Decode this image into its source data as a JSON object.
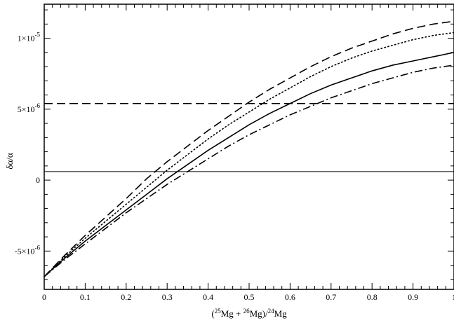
{
  "chart_data": {
    "type": "line",
    "title": "",
    "xlabel": {
      "open": "(",
      "iso25": "25",
      "mg1": "Mg + ",
      "iso26": "26",
      "mg2": "Mg)/",
      "iso24": "24",
      "mg3": "Mg"
    },
    "ylabel": "δα/α",
    "xlim": [
      0,
      1
    ],
    "ylim": [
      -7.7e-06,
      1.24e-05
    ],
    "grid": false,
    "x_ticks": [
      {
        "value": 0,
        "label": "0"
      },
      {
        "value": 0.1,
        "label": "0.1"
      },
      {
        "value": 0.2,
        "label": "0.2"
      },
      {
        "value": 0.3,
        "label": "0.3"
      },
      {
        "value": 0.4,
        "label": "0.4"
      },
      {
        "value": 0.5,
        "label": "0.5"
      },
      {
        "value": 0.6,
        "label": "0.6"
      },
      {
        "value": 0.7,
        "label": "0.7"
      },
      {
        "value": 0.8,
        "label": "0.8"
      },
      {
        "value": 0.9,
        "label": "0.9"
      },
      {
        "value": 1,
        "label": "1"
      }
    ],
    "y_ticks": [
      {
        "value": -5e-06,
        "mantissa": "-5×10",
        "exponent": "-6"
      },
      {
        "value": 0,
        "mantissa": "0",
        "exponent": ""
      },
      {
        "value": 5e-06,
        "mantissa": "5×10",
        "exponent": "-6"
      },
      {
        "value": 1e-05,
        "mantissa": "1×10",
        "exponent": "-5"
      }
    ],
    "reference_lines": [
      {
        "y": 5.4e-06,
        "style": "dashed"
      },
      {
        "y": 6e-07,
        "style": "solid-thin"
      }
    ],
    "series": [
      {
        "style": "dashed",
        "x": [
          0,
          0.05,
          0.1,
          0.15,
          0.2,
          0.25,
          0.3,
          0.35,
          0.4,
          0.45,
          0.5,
          0.55,
          0.6,
          0.65,
          0.7,
          0.75,
          0.8,
          0.85,
          0.9,
          0.95,
          1
        ],
        "y": [
          -6.8e-06,
          -5.3e-06,
          -3.9e-06,
          -2.6e-06,
          -1.3e-06,
          1e-07,
          1.3e-06,
          2.4e-06,
          3.5e-06,
          4.5e-06,
          5.5e-06,
          6.4e-06,
          7.2e-06,
          8e-06,
          8.7e-06,
          9.3e-06,
          9.8e-06,
          1.03e-05,
          1.07e-05,
          1.1e-05,
          1.12e-05
        ]
      },
      {
        "style": "dotted",
        "x": [
          0,
          0.05,
          0.1,
          0.15,
          0.2,
          0.25,
          0.3,
          0.35,
          0.4,
          0.45,
          0.5,
          0.55,
          0.6,
          0.65,
          0.7,
          0.75,
          0.8,
          0.85,
          0.9,
          0.95,
          1
        ],
        "y": [
          -6.8e-06,
          -5.4e-06,
          -4.1e-06,
          -2.9e-06,
          -1.7e-06,
          -5e-07,
          7e-07,
          1.8e-06,
          2.9e-06,
          3.9e-06,
          4.8e-06,
          5.7e-06,
          6.5e-06,
          7.3e-06,
          8e-06,
          8.6e-06,
          9.1e-06,
          9.5e-06,
          9.9e-06,
          1.02e-05,
          1.04e-05
        ]
      },
      {
        "style": "solid",
        "x": [
          0,
          0.05,
          0.1,
          0.15,
          0.2,
          0.25,
          0.3,
          0.35,
          0.4,
          0.45,
          0.5,
          0.55,
          0.6,
          0.65,
          0.7,
          0.75,
          0.8,
          0.85,
          0.9,
          0.95,
          1
        ],
        "y": [
          -6.8e-06,
          -5.5e-06,
          -4.3e-06,
          -3.2e-06,
          -2.1e-06,
          -1e-06,
          1e-07,
          1.1e-06,
          2.1e-06,
          3e-06,
          3.9e-06,
          4.7e-06,
          5.4e-06,
          6.1e-06,
          6.7e-06,
          7.2e-06,
          7.7e-06,
          8.1e-06,
          8.4e-06,
          8.7e-06,
          9e-06
        ]
      },
      {
        "style": "dashdot",
        "x": [
          0,
          0.05,
          0.1,
          0.15,
          0.2,
          0.25,
          0.3,
          0.35,
          0.4,
          0.45,
          0.5,
          0.55,
          0.6,
          0.65,
          0.7,
          0.75,
          0.8,
          0.85,
          0.9,
          0.95,
          1
        ],
        "y": [
          -6.8e-06,
          -5.6e-06,
          -4.5e-06,
          -3.4e-06,
          -2.3e-06,
          -1.3e-06,
          -3e-07,
          6e-07,
          1.5e-06,
          2.4e-06,
          3.2e-06,
          3.9e-06,
          4.6e-06,
          5.2e-06,
          5.8e-06,
          6.3e-06,
          6.8e-06,
          7.2e-06,
          7.6e-06,
          7.9e-06,
          8.1e-06
        ]
      }
    ]
  }
}
